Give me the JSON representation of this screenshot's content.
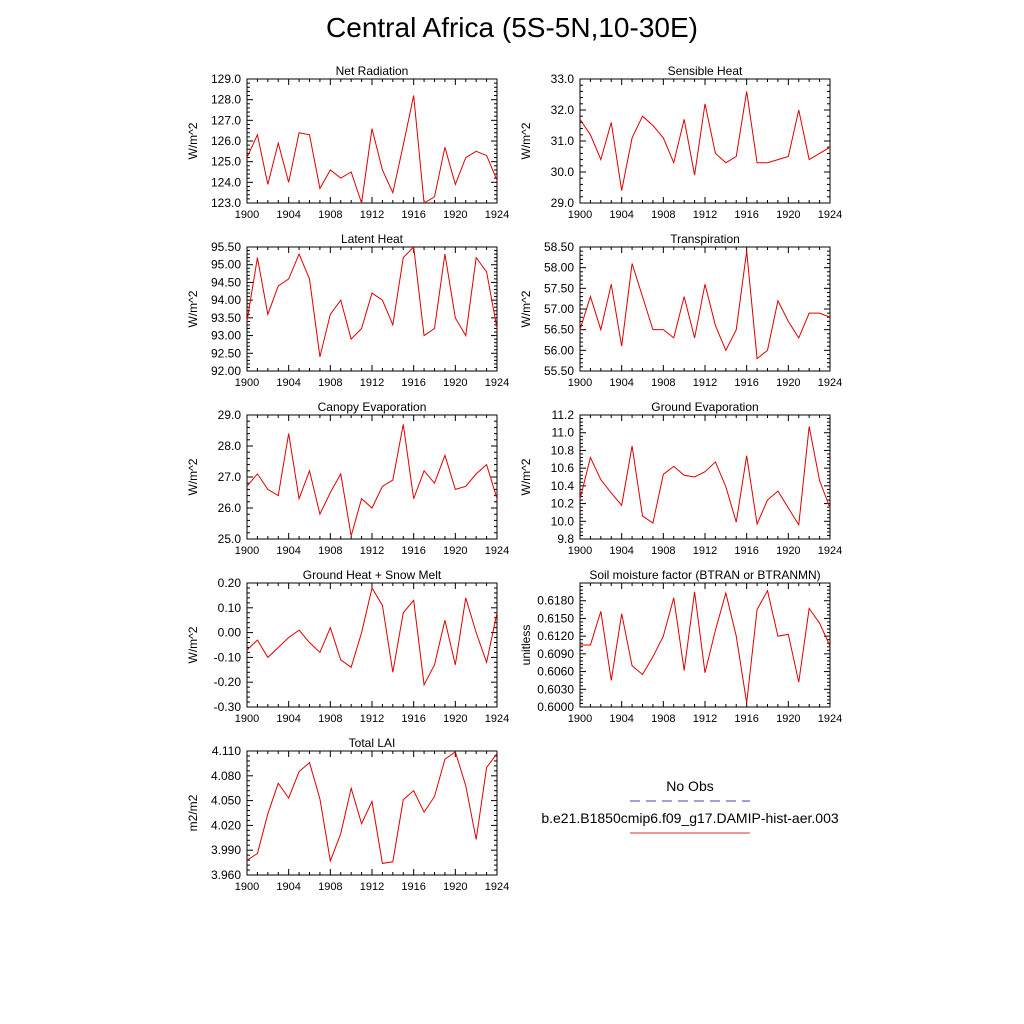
{
  "title": "Central Africa (5S-5N,10-30E)",
  "legend": [
    {
      "label": "No Obs",
      "color": "#4040c0",
      "dash": "dashed"
    },
    {
      "label": "b.e21.B1850cmip6.f09_g17.DAMIP-hist-aer.003",
      "color": "#e03030",
      "dash": "solid"
    }
  ],
  "chart_data": [
    {
      "type": "line",
      "title": "Net Radiation",
      "ylabel": "W/m^2",
      "xlim": [
        1900,
        1924
      ],
      "ylim": [
        123.0,
        129.0
      ],
      "xticks": [
        1900,
        1904,
        1908,
        1912,
        1916,
        1920,
        1924
      ],
      "yticks": [
        123.0,
        124.0,
        125.0,
        126.0,
        127.0,
        128.0,
        129.0
      ],
      "ydecimals": 1,
      "x": [
        1900,
        1901,
        1902,
        1903,
        1904,
        1905,
        1906,
        1907,
        1908,
        1909,
        1910,
        1911,
        1912,
        1913,
        1914,
        1915,
        1916,
        1917,
        1918,
        1919,
        1920,
        1921,
        1922,
        1923,
        1924
      ],
      "series": [
        {
          "color": "#e00000",
          "values": [
            125.2,
            126.3,
            123.9,
            125.9,
            124.0,
            126.4,
            126.3,
            123.7,
            124.6,
            124.2,
            124.5,
            123.0,
            126.6,
            124.6,
            123.5,
            125.8,
            128.2,
            123.0,
            123.3,
            125.7,
            123.9,
            125.2,
            125.5,
            125.3,
            124.1
          ]
        }
      ]
    },
    {
      "type": "line",
      "title": "Sensible Heat",
      "ylabel": "W/m^2",
      "xlim": [
        1900,
        1924
      ],
      "ylim": [
        29.0,
        33.0
      ],
      "xticks": [
        1900,
        1904,
        1908,
        1912,
        1916,
        1920,
        1924
      ],
      "yticks": [
        29.0,
        30.0,
        31.0,
        32.0,
        33.0
      ],
      "ydecimals": 1,
      "x": [
        1900,
        1901,
        1902,
        1903,
        1904,
        1905,
        1906,
        1907,
        1908,
        1909,
        1910,
        1911,
        1912,
        1913,
        1914,
        1915,
        1916,
        1917,
        1918,
        1919,
        1920,
        1921,
        1922,
        1923,
        1924
      ],
      "series": [
        {
          "color": "#e00000",
          "values": [
            31.7,
            31.2,
            30.4,
            31.6,
            29.4,
            31.1,
            31.8,
            31.5,
            31.1,
            30.3,
            31.7,
            29.9,
            32.2,
            30.6,
            30.3,
            30.5,
            32.6,
            30.3,
            30.3,
            30.4,
            30.5,
            32.0,
            30.4,
            30.6,
            30.8
          ]
        }
      ]
    },
    {
      "type": "line",
      "title": "Latent Heat",
      "ylabel": "W/m^2",
      "xlim": [
        1900,
        1924
      ],
      "ylim": [
        92.0,
        95.5
      ],
      "xticks": [
        1900,
        1904,
        1908,
        1912,
        1916,
        1920,
        1924
      ],
      "yticks": [
        92.0,
        92.5,
        93.0,
        93.5,
        94.0,
        94.5,
        95.0,
        95.5
      ],
      "ydecimals": 2,
      "x": [
        1900,
        1901,
        1902,
        1903,
        1904,
        1905,
        1906,
        1907,
        1908,
        1909,
        1910,
        1911,
        1912,
        1913,
        1914,
        1915,
        1916,
        1917,
        1918,
        1919,
        1920,
        1921,
        1922,
        1923,
        1924
      ],
      "series": [
        {
          "color": "#e00000",
          "values": [
            93.4,
            95.2,
            93.6,
            94.4,
            94.6,
            95.3,
            94.6,
            92.4,
            93.6,
            94.0,
            92.9,
            93.2,
            94.2,
            94.0,
            93.3,
            95.2,
            95.5,
            93.0,
            93.2,
            95.3,
            93.5,
            93.0,
            95.2,
            94.8,
            93.2
          ]
        }
      ]
    },
    {
      "type": "line",
      "title": "Transpiration",
      "ylabel": "W/m^2",
      "xlim": [
        1900,
        1924
      ],
      "ylim": [
        55.5,
        58.5
      ],
      "xticks": [
        1900,
        1904,
        1908,
        1912,
        1916,
        1920,
        1924
      ],
      "yticks": [
        55.5,
        56.0,
        56.5,
        57.0,
        57.5,
        58.0,
        58.5
      ],
      "ydecimals": 2,
      "x": [
        1900,
        1901,
        1902,
        1903,
        1904,
        1905,
        1906,
        1907,
        1908,
        1909,
        1910,
        1911,
        1912,
        1913,
        1914,
        1915,
        1916,
        1917,
        1918,
        1919,
        1920,
        1921,
        1922,
        1923,
        1924
      ],
      "series": [
        {
          "color": "#e00000",
          "values": [
            56.5,
            57.3,
            56.5,
            57.6,
            56.1,
            58.1,
            57.3,
            56.5,
            56.5,
            56.3,
            57.3,
            56.3,
            57.6,
            56.6,
            56.0,
            56.5,
            58.4,
            55.8,
            56.0,
            57.2,
            56.7,
            56.3,
            56.9,
            56.9,
            56.8
          ]
        }
      ]
    },
    {
      "type": "line",
      "title": "Canopy Evaporation",
      "ylabel": "W/m^2",
      "xlim": [
        1900,
        1924
      ],
      "ylim": [
        25.0,
        29.0
      ],
      "xticks": [
        1900,
        1904,
        1908,
        1912,
        1916,
        1920,
        1924
      ],
      "yticks": [
        25.0,
        26.0,
        27.0,
        28.0,
        29.0
      ],
      "ydecimals": 1,
      "x": [
        1900,
        1901,
        1902,
        1903,
        1904,
        1905,
        1906,
        1907,
        1908,
        1909,
        1910,
        1911,
        1912,
        1913,
        1914,
        1915,
        1916,
        1917,
        1918,
        1919,
        1920,
        1921,
        1922,
        1923,
        1924
      ],
      "series": [
        {
          "color": "#e00000",
          "values": [
            26.7,
            27.1,
            26.6,
            26.4,
            28.4,
            26.3,
            27.2,
            25.8,
            26.5,
            27.1,
            25.1,
            26.3,
            26.0,
            26.7,
            26.9,
            28.7,
            26.3,
            27.2,
            26.8,
            27.7,
            26.6,
            26.7,
            27.1,
            27.4,
            26.3
          ]
        }
      ]
    },
    {
      "type": "line",
      "title": "Ground Evaporation",
      "ylabel": "W/m^2",
      "xlim": [
        1900,
        1924
      ],
      "ylim": [
        9.8,
        11.2
      ],
      "xticks": [
        1900,
        1904,
        1908,
        1912,
        1916,
        1920,
        1924
      ],
      "yticks": [
        9.8,
        10.0,
        10.2,
        10.4,
        10.6,
        10.8,
        11.0,
        11.2
      ],
      "ydecimals": 1,
      "x": [
        1900,
        1901,
        1902,
        1903,
        1904,
        1905,
        1906,
        1907,
        1908,
        1909,
        1910,
        1911,
        1912,
        1913,
        1914,
        1915,
        1916,
        1917,
        1918,
        1919,
        1920,
        1921,
        1922,
        1923,
        1924
      ],
      "series": [
        {
          "color": "#e00000",
          "values": [
            10.25,
            10.72,
            10.47,
            10.32,
            10.18,
            10.85,
            10.06,
            9.98,
            10.53,
            10.62,
            10.52,
            10.5,
            10.56,
            10.67,
            10.39,
            9.99,
            10.74,
            9.97,
            10.24,
            10.34,
            10.15,
            9.96,
            11.07,
            10.46,
            10.15
          ]
        }
      ]
    },
    {
      "type": "line",
      "title": "Ground Heat + Snow Melt",
      "ylabel": "W/m^2",
      "xlim": [
        1900,
        1924
      ],
      "ylim": [
        -0.3,
        0.2
      ],
      "xticks": [
        1900,
        1904,
        1908,
        1912,
        1916,
        1920,
        1924
      ],
      "yticks": [
        -0.3,
        -0.2,
        -0.1,
        0.0,
        0.1,
        0.2
      ],
      "ydecimals": 2,
      "x": [
        1900,
        1901,
        1902,
        1903,
        1904,
        1905,
        1906,
        1907,
        1908,
        1909,
        1910,
        1911,
        1912,
        1913,
        1914,
        1915,
        1916,
        1917,
        1918,
        1919,
        1920,
        1921,
        1922,
        1923,
        1924
      ],
      "series": [
        {
          "color": "#e00000",
          "values": [
            -0.07,
            -0.03,
            -0.1,
            -0.06,
            -0.02,
            0.01,
            -0.04,
            -0.08,
            0.02,
            -0.11,
            -0.14,
            0.0,
            0.18,
            0.11,
            -0.16,
            0.08,
            0.13,
            -0.21,
            -0.13,
            0.05,
            -0.13,
            0.14,
            0.0,
            -0.12,
            0.08
          ]
        }
      ]
    },
    {
      "type": "line",
      "title": "Soil moisture factor (BTRAN or BTRANMN)",
      "ylabel": "unitless",
      "xlim": [
        1900,
        1924
      ],
      "ylim": [
        0.6,
        0.621
      ],
      "xticks": [
        1900,
        1904,
        1908,
        1912,
        1916,
        1920,
        1924
      ],
      "yticks": [
        0.6,
        0.603,
        0.606,
        0.609,
        0.612,
        0.615,
        0.618
      ],
      "ydecimals": 4,
      "x": [
        1900,
        1901,
        1902,
        1903,
        1904,
        1905,
        1906,
        1907,
        1908,
        1909,
        1910,
        1911,
        1912,
        1913,
        1914,
        1915,
        1916,
        1917,
        1918,
        1919,
        1920,
        1921,
        1922,
        1923,
        1924
      ],
      "series": [
        {
          "color": "#e00000",
          "values": [
            0.6105,
            0.6105,
            0.6162,
            0.6045,
            0.6158,
            0.607,
            0.6055,
            0.6085,
            0.612,
            0.6185,
            0.6062,
            0.6195,
            0.6058,
            0.613,
            0.6193,
            0.612,
            0.6007,
            0.6165,
            0.6197,
            0.612,
            0.6123,
            0.6042,
            0.6167,
            0.6142,
            0.6103
          ]
        }
      ]
    },
    {
      "type": "line",
      "title": "Total LAI",
      "ylabel": "m2/m2",
      "xlim": [
        1900,
        1924
      ],
      "ylim": [
        3.96,
        4.11
      ],
      "xticks": [
        1900,
        1904,
        1908,
        1912,
        1916,
        1920,
        1924
      ],
      "yticks": [
        3.96,
        3.99,
        4.02,
        4.05,
        4.08,
        4.11
      ],
      "ydecimals": 3,
      "x": [
        1900,
        1901,
        1902,
        1903,
        1904,
        1905,
        1906,
        1907,
        1908,
        1909,
        1910,
        1911,
        1912,
        1913,
        1914,
        1915,
        1916,
        1917,
        1918,
        1919,
        1920,
        1921,
        1922,
        1923,
        1924
      ],
      "series": [
        {
          "color": "#e00000",
          "values": [
            3.978,
            3.986,
            4.034,
            4.071,
            4.053,
            4.085,
            4.096,
            4.052,
            3.977,
            4.01,
            4.065,
            4.022,
            4.049,
            3.974,
            3.976,
            4.051,
            4.062,
            4.036,
            4.055,
            4.1,
            4.109,
            4.068,
            4.003,
            4.09,
            4.107
          ]
        }
      ]
    }
  ]
}
